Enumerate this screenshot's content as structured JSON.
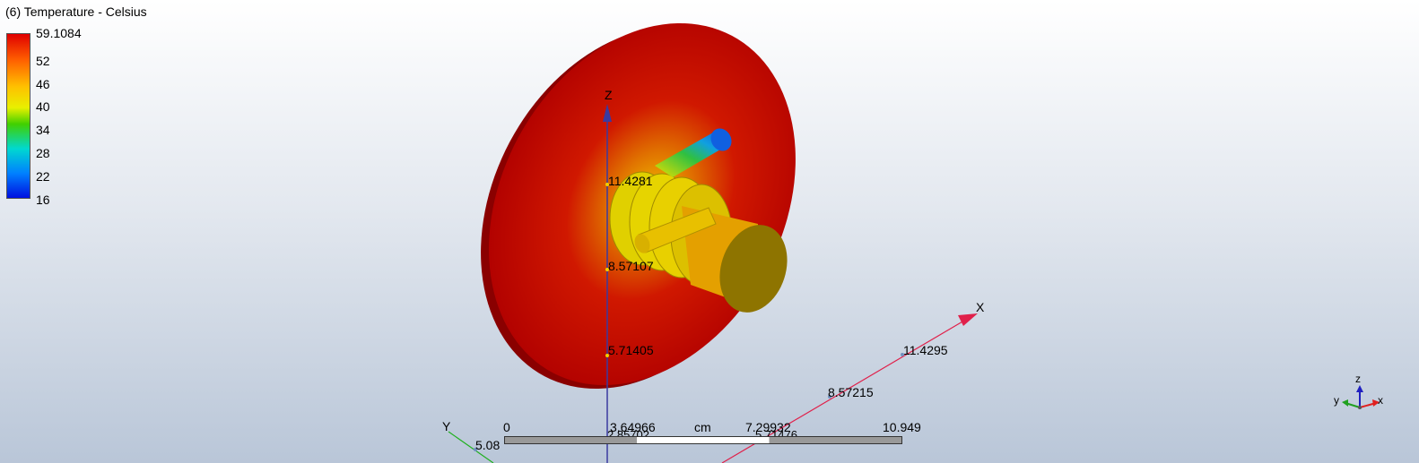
{
  "title": "(6) Temperature - Celsius",
  "legend": {
    "max": "59.1084",
    "ticks": [
      "52",
      "46",
      "40",
      "34",
      "28",
      "22"
    ],
    "min": "16"
  },
  "axes": {
    "z_label": "Z",
    "x_label": "X",
    "y_label": "Y",
    "z_values": [
      "11.4281",
      "8.57107",
      "5.71405"
    ],
    "x_values": [
      "11.4295",
      "8.57215"
    ],
    "y_value": "5.08",
    "overlap_a": "2.85702",
    "overlap_b": "5.71476"
  },
  "ruler": {
    "labels": [
      "0",
      "3.64966",
      "cm",
      "7.29932",
      "10.949"
    ]
  },
  "triad": {
    "z": "z",
    "y": "y",
    "x": "x"
  },
  "colors": {
    "hot": "#cc0000",
    "warm": "#e8a800",
    "cold": "#1060e0",
    "z_axis": "#3a3aa0",
    "x_axis": "#e0204a",
    "y_axis": "#20b020"
  }
}
